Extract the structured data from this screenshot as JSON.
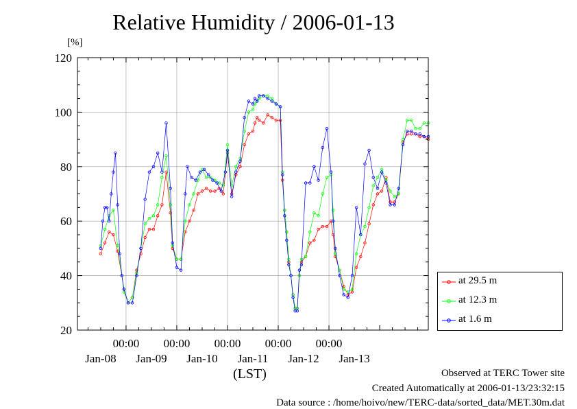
{
  "chart_data": {
    "type": "line",
    "title": "Relative Humidity / 2006-01-13",
    "ylabel": "[%]",
    "xlabel": "(LST)",
    "ylim": [
      20,
      120
    ],
    "y_ticks": [
      20,
      40,
      60,
      80,
      100,
      120
    ],
    "x_range_hours": [
      0,
      144
    ],
    "x_tick_labels_time": [
      "00:00",
      "00:00",
      "00:00",
      "00:00",
      "00:00"
    ],
    "x_tick_labels_date": [
      "Jan-08",
      "Jan-09",
      "Jan-10",
      "Jan-11",
      "Jan-12",
      "Jan-13"
    ],
    "grid": true,
    "legend_position": "bottom-right",
    "series": [
      {
        "name": "at 29.5 m",
        "color": "#ff0000",
        "points": [
          [
            0,
            48
          ],
          [
            2,
            52
          ],
          [
            4,
            56
          ],
          [
            6,
            55
          ],
          [
            8,
            49
          ],
          [
            10,
            40
          ],
          [
            11,
            35
          ],
          [
            13,
            30
          ],
          [
            15,
            32
          ],
          [
            17,
            42
          ],
          [
            19,
            48
          ],
          [
            21,
            54
          ],
          [
            23,
            57
          ],
          [
            25,
            57
          ],
          [
            27,
            62
          ],
          [
            29,
            66
          ],
          [
            31,
            78
          ],
          [
            33,
            63
          ],
          [
            34,
            50
          ],
          [
            36,
            46
          ],
          [
            38,
            46
          ],
          [
            40,
            56
          ],
          [
            42,
            60
          ],
          [
            44,
            64
          ],
          [
            46,
            70
          ],
          [
            48,
            71
          ],
          [
            50,
            72
          ],
          [
            52,
            71
          ],
          [
            54,
            71
          ],
          [
            56,
            72
          ],
          [
            58,
            70
          ],
          [
            60,
            85
          ],
          [
            62,
            70
          ],
          [
            64,
            77
          ],
          [
            66,
            80
          ],
          [
            68,
            88
          ],
          [
            70,
            92
          ],
          [
            72,
            93
          ],
          [
            73,
            96
          ],
          [
            74,
            98
          ],
          [
            75,
            97
          ],
          [
            77,
            96
          ],
          [
            79,
            99
          ],
          [
            81,
            98
          ],
          [
            83,
            97
          ],
          [
            85,
            97
          ],
          [
            86,
            75
          ],
          [
            87,
            64
          ],
          [
            88,
            56
          ],
          [
            89,
            45
          ],
          [
            90,
            40
          ],
          [
            91,
            33
          ],
          [
            92,
            28
          ],
          [
            93,
            28
          ],
          [
            94,
            40
          ],
          [
            95,
            45
          ],
          [
            97,
            47
          ],
          [
            99,
            52
          ],
          [
            101,
            53
          ],
          [
            103,
            57
          ],
          [
            105,
            58
          ],
          [
            107,
            58
          ],
          [
            109,
            60
          ],
          [
            110,
            55
          ],
          [
            111,
            47
          ],
          [
            113,
            42
          ],
          [
            115,
            36
          ],
          [
            117,
            33
          ],
          [
            119,
            34
          ],
          [
            121,
            43
          ],
          [
            123,
            47
          ],
          [
            125,
            52
          ],
          [
            127,
            59
          ],
          [
            129,
            66
          ],
          [
            131,
            70
          ],
          [
            133,
            71
          ],
          [
            135,
            76
          ],
          [
            137,
            67
          ],
          [
            139,
            67
          ],
          [
            141,
            70
          ],
          [
            143,
            89
          ],
          [
            145,
            92
          ],
          [
            147,
            92
          ],
          [
            149,
            92
          ],
          [
            151,
            91
          ],
          [
            153,
            91
          ],
          [
            155,
            90
          ]
        ]
      },
      {
        "name": "at 12.3 m",
        "color": "#00ff00",
        "points": [
          [
            0,
            51
          ],
          [
            2,
            57
          ],
          [
            4,
            62
          ],
          [
            6,
            64
          ],
          [
            8,
            51
          ],
          [
            10,
            40
          ],
          [
            11,
            34
          ],
          [
            13,
            30
          ],
          [
            15,
            32
          ],
          [
            17,
            41
          ],
          [
            19,
            50
          ],
          [
            21,
            59
          ],
          [
            23,
            61
          ],
          [
            25,
            62
          ],
          [
            27,
            66
          ],
          [
            29,
            76
          ],
          [
            31,
            84
          ],
          [
            33,
            66
          ],
          [
            34,
            51
          ],
          [
            36,
            46
          ],
          [
            38,
            46
          ],
          [
            40,
            60
          ],
          [
            42,
            66
          ],
          [
            44,
            70
          ],
          [
            46,
            75
          ],
          [
            48,
            79
          ],
          [
            50,
            76
          ],
          [
            52,
            76
          ],
          [
            54,
            75
          ],
          [
            56,
            74
          ],
          [
            58,
            73
          ],
          [
            60,
            88
          ],
          [
            62,
            73
          ],
          [
            64,
            80
          ],
          [
            66,
            83
          ],
          [
            68,
            93
          ],
          [
            70,
            100
          ],
          [
            72,
            101
          ],
          [
            73,
            103
          ],
          [
            74,
            104
          ],
          [
            75,
            105
          ],
          [
            77,
            106
          ],
          [
            79,
            106
          ],
          [
            81,
            105
          ],
          [
            83,
            103
          ],
          [
            85,
            102
          ],
          [
            86,
            78
          ],
          [
            87,
            64
          ],
          [
            88,
            56
          ],
          [
            89,
            46
          ],
          [
            90,
            40
          ],
          [
            91,
            33
          ],
          [
            92,
            28
          ],
          [
            93,
            28
          ],
          [
            94,
            40
          ],
          [
            95,
            46
          ],
          [
            97,
            47
          ],
          [
            99,
            56
          ],
          [
            101,
            63
          ],
          [
            103,
            62
          ],
          [
            105,
            70
          ],
          [
            107,
            76
          ],
          [
            109,
            77
          ],
          [
            110,
            64
          ],
          [
            111,
            48
          ],
          [
            113,
            42
          ],
          [
            115,
            35
          ],
          [
            117,
            34
          ],
          [
            119,
            35
          ],
          [
            121,
            48
          ],
          [
            123,
            55
          ],
          [
            125,
            58
          ],
          [
            127,
            65
          ],
          [
            129,
            73
          ],
          [
            131,
            76
          ],
          [
            133,
            79
          ],
          [
            135,
            75
          ],
          [
            137,
            71
          ],
          [
            139,
            69
          ],
          [
            141,
            70
          ],
          [
            143,
            90
          ],
          [
            145,
            97
          ],
          [
            147,
            97
          ],
          [
            149,
            94
          ],
          [
            151,
            94
          ],
          [
            153,
            96
          ],
          [
            155,
            96
          ]
        ]
      },
      {
        "name": "at 1.6 m",
        "color": "#0000ff",
        "points": [
          [
            0,
            50
          ],
          [
            1,
            60
          ],
          [
            2,
            65
          ],
          [
            3,
            65
          ],
          [
            4,
            60
          ],
          [
            5,
            70
          ],
          [
            6,
            78
          ],
          [
            7,
            85
          ],
          [
            8,
            66
          ],
          [
            9,
            48
          ],
          [
            10,
            40
          ],
          [
            11,
            35
          ],
          [
            13,
            30
          ],
          [
            15,
            30
          ],
          [
            17,
            40
          ],
          [
            19,
            50
          ],
          [
            21,
            68
          ],
          [
            23,
            78
          ],
          [
            25,
            80
          ],
          [
            27,
            85
          ],
          [
            29,
            78
          ],
          [
            31,
            96
          ],
          [
            33,
            72
          ],
          [
            34,
            52
          ],
          [
            36,
            43
          ],
          [
            38,
            42
          ],
          [
            40,
            70
          ],
          [
            41,
            80
          ],
          [
            43,
            76
          ],
          [
            45,
            75
          ],
          [
            47,
            78
          ],
          [
            49,
            79
          ],
          [
            51,
            77
          ],
          [
            53,
            75
          ],
          [
            55,
            74
          ],
          [
            57,
            71
          ],
          [
            59,
            78
          ],
          [
            60,
            86
          ],
          [
            62,
            69
          ],
          [
            64,
            78
          ],
          [
            66,
            82
          ],
          [
            68,
            98
          ],
          [
            70,
            104
          ],
          [
            72,
            103
          ],
          [
            73,
            105
          ],
          [
            74,
            104
          ],
          [
            75,
            106
          ],
          [
            77,
            106
          ],
          [
            79,
            105
          ],
          [
            81,
            104
          ],
          [
            83,
            103
          ],
          [
            85,
            102
          ],
          [
            86,
            77
          ],
          [
            87,
            62
          ],
          [
            88,
            53
          ],
          [
            89,
            44
          ],
          [
            90,
            40
          ],
          [
            91,
            32
          ],
          [
            92,
            27
          ],
          [
            93,
            27
          ],
          [
            94,
            42
          ],
          [
            95,
            44
          ],
          [
            97,
            74
          ],
          [
            99,
            74
          ],
          [
            101,
            80
          ],
          [
            103,
            75
          ],
          [
            105,
            87
          ],
          [
            107,
            94
          ],
          [
            109,
            78
          ],
          [
            110,
            60
          ],
          [
            111,
            50
          ],
          [
            113,
            40
          ],
          [
            115,
            33
          ],
          [
            117,
            32
          ],
          [
            119,
            40
          ],
          [
            121,
            65
          ],
          [
            123,
            55
          ],
          [
            125,
            81
          ],
          [
            127,
            86
          ],
          [
            129,
            76
          ],
          [
            131,
            72
          ],
          [
            133,
            78
          ],
          [
            135,
            74
          ],
          [
            137,
            66
          ],
          [
            139,
            66
          ],
          [
            141,
            72
          ],
          [
            143,
            88
          ],
          [
            145,
            93
          ],
          [
            147,
            93
          ],
          [
            149,
            92
          ],
          [
            151,
            92
          ],
          [
            153,
            91
          ],
          [
            155,
            91
          ]
        ]
      }
    ]
  },
  "footer": {
    "line1": "Observed at TERC Tower site",
    "line2": "Created Automatically at 2006-01-13/23:32:15",
    "line3": "Data source : /home/hoivo/new/TERC-data/sorted_data/MET.30m.dat"
  }
}
